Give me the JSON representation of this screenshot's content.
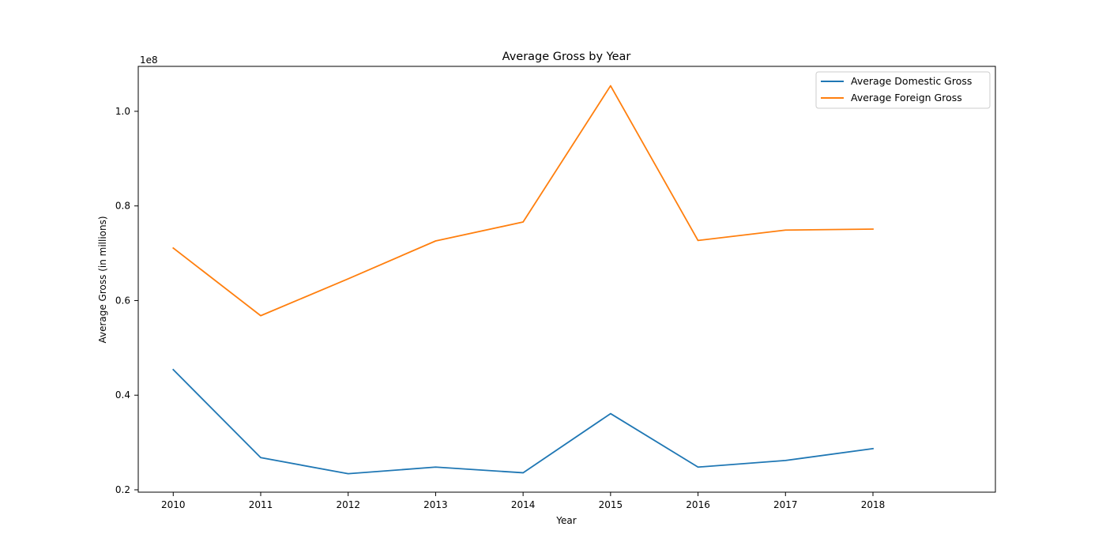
{
  "chart_data": {
    "type": "line",
    "title": "Average Gross by Year",
    "xlabel": "Year",
    "ylabel": "Average Gross (in millions)",
    "y_offset_label": "1e8",
    "x": [
      2010,
      2011,
      2012,
      2013,
      2014,
      2015,
      2016,
      2017,
      2018
    ],
    "x_ticks": [
      "2010",
      "2011",
      "2012",
      "2013",
      "2014",
      "2015",
      "2016",
      "2017",
      "2018"
    ],
    "y_ticks": [
      0.2,
      0.4,
      0.6,
      0.8,
      1.0
    ],
    "y_tick_labels": [
      "0.2",
      "0.4",
      "0.6",
      "0.8",
      "1.0"
    ],
    "xlim": [
      2009.6,
      2019.4
    ],
    "ylim": [
      0.195,
      1.095
    ],
    "grid": false,
    "legend_position": "top-right",
    "series": [
      {
        "name": "Average Domestic Gross",
        "color": "#1f77b4",
        "values": [
          0.454,
          0.268,
          0.234,
          0.248,
          0.236,
          0.361,
          0.248,
          0.262,
          0.287
        ]
      },
      {
        "name": "Average Foreign Gross",
        "color": "#ff7f0e",
        "values": [
          0.711,
          0.568,
          0.646,
          0.726,
          0.766,
          1.054,
          0.727,
          0.749,
          0.751
        ]
      }
    ]
  }
}
